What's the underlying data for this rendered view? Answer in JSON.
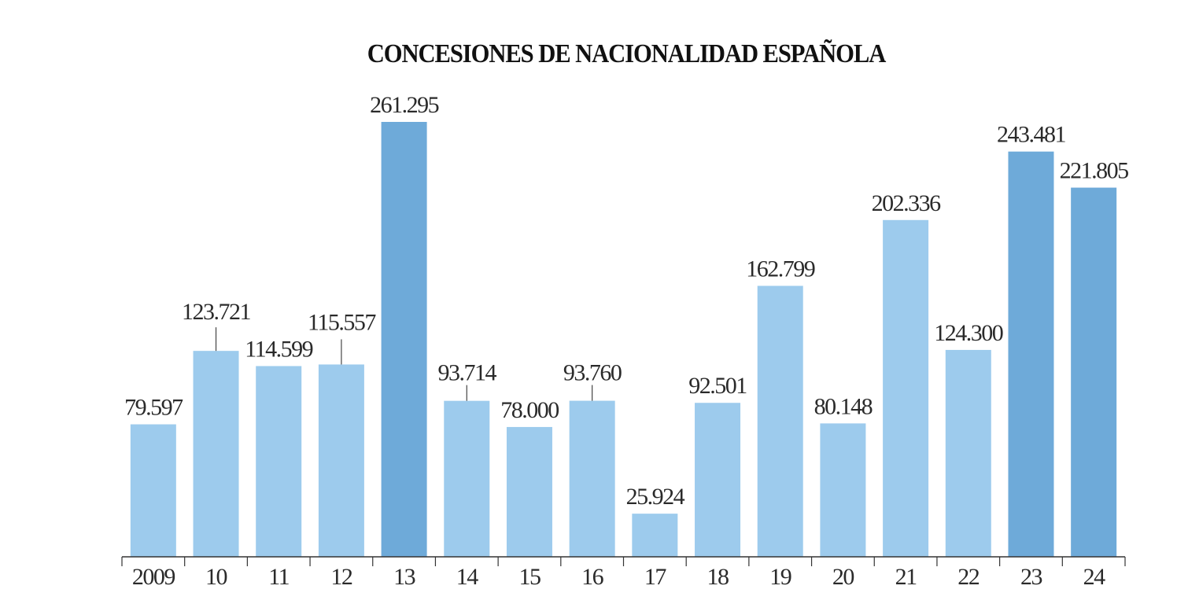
{
  "chart_data": {
    "type": "bar",
    "title": "CONCESIONES DE NACIONALIDAD ESPAÑOLA",
    "xlabel": "",
    "ylabel": "",
    "categories": [
      "2009",
      "10",
      "11",
      "12",
      "13",
      "14",
      "15",
      "16",
      "17",
      "18",
      "19",
      "20",
      "21",
      "22",
      "23",
      "24"
    ],
    "values": [
      79597,
      123721,
      114599,
      115557,
      261295,
      93714,
      78000,
      93760,
      25924,
      92501,
      162799,
      80148,
      202336,
      124300,
      243481,
      221805
    ],
    "data_labels": [
      "79.597",
      "123.721",
      "114.599",
      "115.557",
      "261.295",
      "93.714",
      "78.000",
      "93.760",
      "25.924",
      "92.501",
      "162.799",
      "80.148",
      "202.336",
      "124.300",
      "243.481",
      "221.805"
    ],
    "highlighted": [
      false,
      false,
      false,
      false,
      true,
      false,
      false,
      false,
      false,
      false,
      false,
      false,
      false,
      false,
      true,
      true
    ],
    "leader_line": [
      false,
      true,
      false,
      true,
      false,
      true,
      false,
      true,
      false,
      false,
      false,
      false,
      false,
      false,
      false,
      false
    ],
    "ylim": [
      0,
      261295
    ],
    "grid": false,
    "colors": {
      "bar": "#9dcbed",
      "highlight": "#6eaad9",
      "axis": "#333333"
    }
  }
}
